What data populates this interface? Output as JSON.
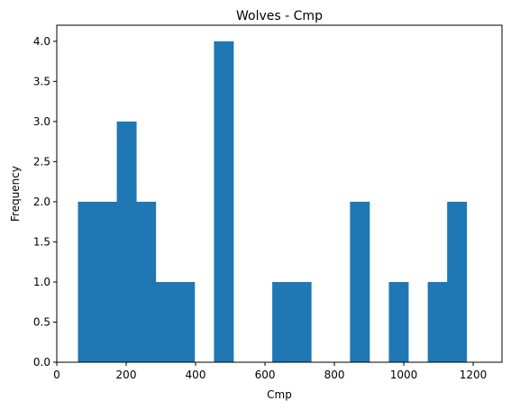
{
  "chart_data": {
    "type": "bar",
    "title": "Wolves - Cmp",
    "xlabel": "Cmp",
    "ylabel": "Frequency",
    "bins": [
      {
        "x0": 61,
        "x1": 117,
        "count": 2
      },
      {
        "x0": 117,
        "x1": 173,
        "count": 2
      },
      {
        "x0": 173,
        "x1": 229,
        "count": 3
      },
      {
        "x0": 229,
        "x1": 285,
        "count": 2
      },
      {
        "x0": 285,
        "x1": 341,
        "count": 1
      },
      {
        "x0": 341,
        "x1": 397,
        "count": 1
      },
      {
        "x0": 397,
        "x1": 453,
        "count": 0
      },
      {
        "x0": 453,
        "x1": 509,
        "count": 4
      },
      {
        "x0": 509,
        "x1": 565,
        "count": 0
      },
      {
        "x0": 565,
        "x1": 621,
        "count": 0
      },
      {
        "x0": 621,
        "x1": 677,
        "count": 1
      },
      {
        "x0": 677,
        "x1": 733,
        "count": 1
      },
      {
        "x0": 733,
        "x1": 789,
        "count": 0
      },
      {
        "x0": 789,
        "x1": 845,
        "count": 0
      },
      {
        "x0": 845,
        "x1": 901,
        "count": 2
      },
      {
        "x0": 901,
        "x1": 957,
        "count": 0
      },
      {
        "x0": 957,
        "x1": 1013,
        "count": 1
      },
      {
        "x0": 1013,
        "x1": 1069,
        "count": 0
      },
      {
        "x0": 1069,
        "x1": 1125,
        "count": 1
      },
      {
        "x0": 1125,
        "x1": 1181,
        "count": 2
      }
    ],
    "xlim": [
      0,
      1283
    ],
    "ylim": [
      0,
      4.2
    ],
    "xticks": [
      0,
      200,
      400,
      600,
      800,
      1000,
      1200
    ],
    "yticks": [
      0.0,
      0.5,
      1.0,
      1.5,
      2.0,
      2.5,
      3.0,
      3.5,
      4.0
    ],
    "bar_color": "#1f77b4",
    "grid": false,
    "legend": "none"
  }
}
